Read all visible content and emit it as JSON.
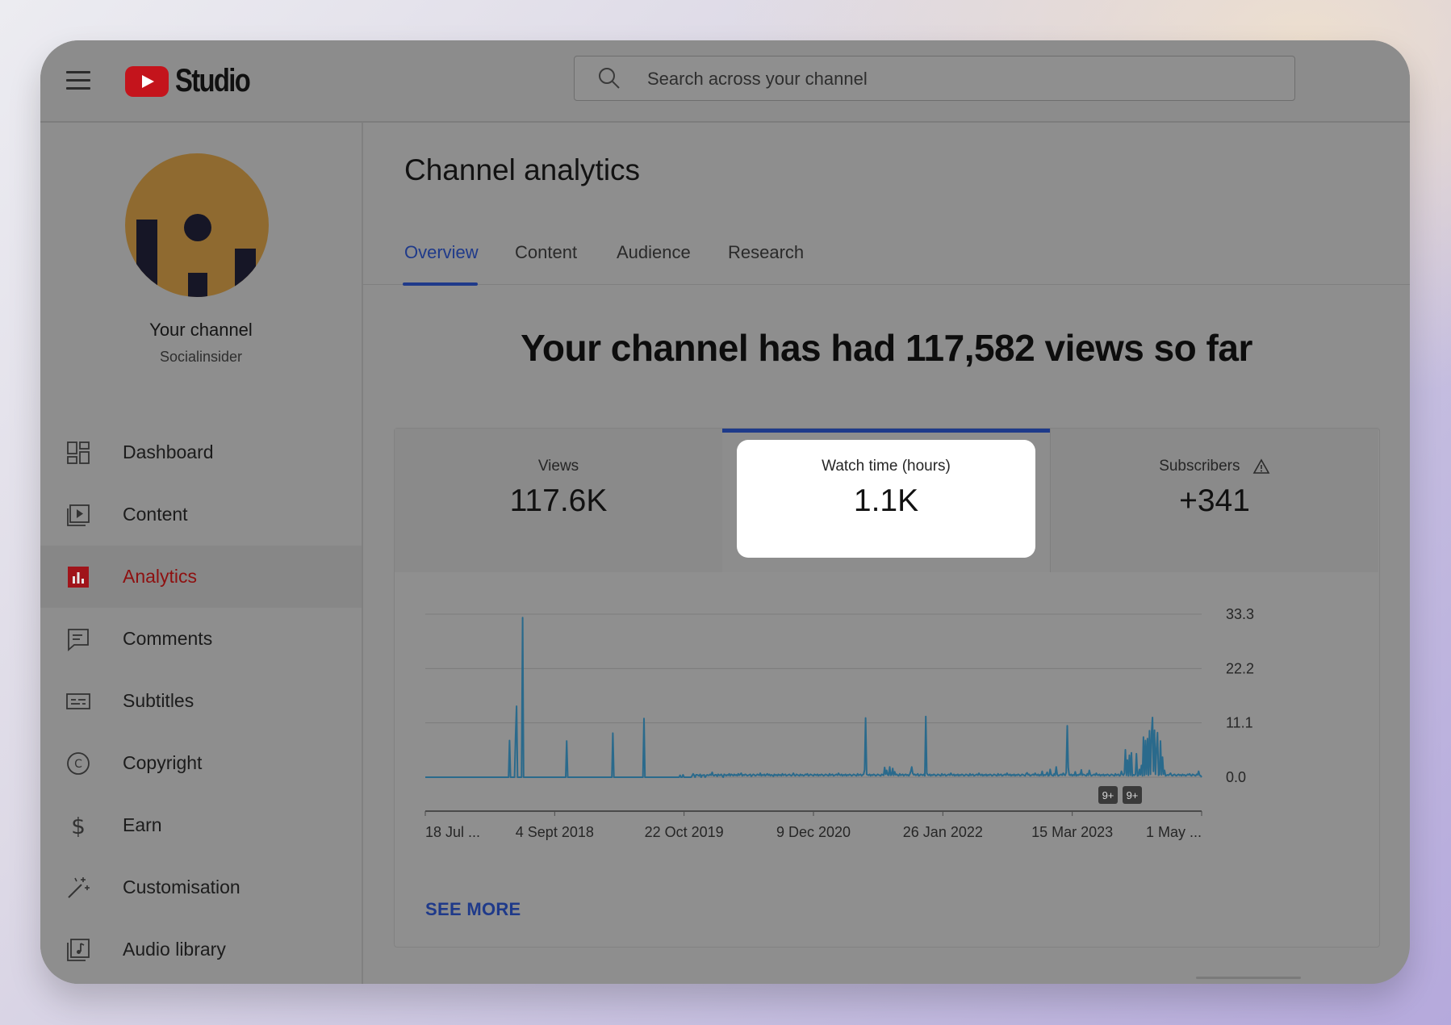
{
  "app": {
    "logo_text": "Studio",
    "search_placeholder": "Search across your channel"
  },
  "sidebar": {
    "channel_name": "Your channel",
    "channel_handle": "Socialinsider",
    "items": [
      {
        "label": "Dashboard",
        "icon": "dashboard-icon",
        "active": false
      },
      {
        "label": "Content",
        "icon": "content-icon",
        "active": false
      },
      {
        "label": "Analytics",
        "icon": "analytics-icon",
        "active": true
      },
      {
        "label": "Comments",
        "icon": "comments-icon",
        "active": false
      },
      {
        "label": "Subtitles",
        "icon": "subtitles-icon",
        "active": false
      },
      {
        "label": "Copyright",
        "icon": "copyright-icon",
        "active": false
      },
      {
        "label": "Earn",
        "icon": "earn-icon",
        "active": false
      },
      {
        "label": "Customisation",
        "icon": "customisation-icon",
        "active": false
      },
      {
        "label": "Audio library",
        "icon": "audio-library-icon",
        "active": false
      }
    ]
  },
  "main": {
    "title": "Channel analytics",
    "tabs": [
      {
        "label": "Overview",
        "active": true
      },
      {
        "label": "Content",
        "active": false
      },
      {
        "label": "Audience",
        "active": false
      },
      {
        "label": "Research",
        "active": false
      }
    ],
    "headline": "Your channel has had 117,582 views so far",
    "metrics": [
      {
        "label": "Views",
        "value": "117.6K"
      },
      {
        "label": "Watch time (hours)",
        "value": "1.1K",
        "selected": true
      },
      {
        "label": "Subscribers",
        "value": "+341",
        "icon": "warning-icon"
      }
    ],
    "see_more": "SEE MORE"
  },
  "colors": {
    "accent_blue": "#1f3a8a",
    "line_color": "#2a6a8c",
    "youtube_red": "#c4141c",
    "active_nav": "#8e1010"
  },
  "chart_data": {
    "type": "line",
    "ylabel": "",
    "xlabel": "",
    "y_ticks": [
      "33.3",
      "22.2",
      "11.1",
      "0.0"
    ],
    "ylim": [
      0,
      33.3
    ],
    "x_tick_labels": [
      "18 Jul ...",
      "4 Sept 2018",
      "22 Oct 2019",
      "9 Dec 2020",
      "26 Jan 2022",
      "15 Mar 2023",
      "1 May ..."
    ],
    "annotations": [
      "9+",
      "9+"
    ],
    "grid": true,
    "series": [
      {
        "values": [
          0,
          0,
          0,
          0,
          0,
          0,
          0,
          0,
          0,
          0,
          0,
          0,
          0,
          0,
          0,
          0,
          0,
          0,
          0,
          0,
          0,
          0,
          0,
          0,
          0,
          0,
          0,
          0,
          0,
          0,
          0,
          0,
          0,
          0,
          0,
          0,
          0,
          0,
          0,
          0,
          0,
          0,
          0,
          0,
          0,
          0,
          0,
          0,
          0,
          0,
          0,
          0,
          0,
          0,
          0,
          0,
          0,
          0,
          0,
          0,
          0,
          0,
          0,
          0,
          0,
          0,
          0,
          0,
          0,
          0,
          0,
          0,
          0,
          0,
          0,
          0,
          0,
          0,
          0,
          0,
          0,
          0,
          0,
          0,
          7.5,
          0,
          0,
          0,
          0,
          0,
          8.5,
          14.5,
          0,
          0,
          0,
          0,
          0,
          32.6,
          0,
          0,
          0,
          0,
          0,
          0,
          0,
          0,
          0,
          0,
          0,
          0,
          0,
          0,
          0,
          0,
          0,
          0,
          0,
          0,
          0,
          0,
          0,
          0,
          0,
          0,
          0,
          0,
          0,
          0,
          0,
          0,
          0,
          0,
          0,
          0,
          0,
          0,
          0,
          0,
          0,
          0,
          0,
          7.4,
          0,
          0,
          0,
          0,
          0,
          0,
          0,
          0,
          0,
          0,
          0,
          0,
          0,
          0,
          0,
          0,
          0,
          0,
          0,
          0,
          0,
          0,
          0,
          0,
          0,
          0,
          0,
          0,
          0,
          0,
          0,
          0,
          0,
          0,
          0,
          0,
          0,
          0,
          0,
          0,
          0,
          0,
          0,
          0,
          0,
          9,
          0,
          0,
          0,
          0,
          0,
          0,
          0,
          0,
          0,
          0,
          0,
          0,
          0,
          0,
          0,
          0,
          0,
          0,
          0,
          0,
          0,
          0,
          0,
          0,
          0,
          0,
          0,
          0,
          0,
          0,
          12,
          0,
          0,
          0,
          0,
          0,
          0,
          0,
          0,
          0,
          0,
          0,
          0,
          0,
          0,
          0,
          0,
          0,
          0,
          0,
          0,
          0,
          0,
          0,
          0,
          0,
          0,
          0,
          0,
          0,
          0,
          0,
          0,
          0,
          0,
          0,
          0.4,
          0,
          0,
          0.5,
          0,
          0,
          0,
          0,
          0,
          0,
          0,
          0,
          0.3,
          0.7,
          0.4,
          0,
          0.5,
          0.5,
          0.4,
          0.3,
          0.6,
          0,
          0.4,
          0.4,
          0.5,
          0,
          0.3,
          0.5,
          0.4,
          0.4,
          0.6,
          0.4,
          1,
          0.4,
          0.3,
          0.5,
          0.5,
          0.2,
          0.6,
          0.4,
          0.4,
          0.6,
          0.3,
          0,
          0.6,
          0.5,
          0.3,
          0.5,
          0.4,
          0.7,
          0.3,
          0.6,
          0.5,
          0.3,
          0.6,
          0.4,
          0.5,
          0.3,
          0.7,
          0.4,
          0.6,
          0.8,
          0.3,
          0.5,
          0.4,
          0.6,
          0.5,
          0.3,
          0.4,
          0.5,
          0.6,
          0.2,
          0.4,
          0.6,
          0.5,
          0.3,
          0.4,
          0.6,
          0.5,
          0.4,
          0.8,
          0.3,
          0.5,
          0.4,
          0.6,
          0.3,
          0.5,
          0.7,
          0.4,
          0.6,
          0.3,
          0.5,
          0.4,
          0.2,
          0.6,
          0.4,
          0.5,
          0.3,
          0.6,
          0.4,
          0.5,
          0.3,
          0.7,
          0.4,
          0.5,
          0.6,
          0.3,
          0.4,
          0.5,
          0.6,
          0.4,
          0.3,
          0.5,
          0.8,
          0.4,
          0.3,
          0.6,
          0.5,
          0.4,
          0.3,
          0.6,
          0.4,
          0.5,
          0.3,
          0.4,
          0.6,
          0.5,
          0.7,
          0.3,
          0.4,
          0.6,
          0.5,
          0.4,
          0.3,
          0.6,
          0.5,
          0.4,
          0.6,
          0.3,
          0.5,
          0.4,
          0.6,
          0.5,
          0.3,
          0.4,
          0.6,
          0.5,
          0.4,
          0.3,
          0.7,
          0.4,
          0.5,
          0.6,
          0.3,
          0.4,
          0.5,
          0.6,
          0.4,
          0.8,
          0.5,
          0.4,
          0.6,
          0.3,
          0.5,
          0.4,
          0.6,
          0.3,
          0.5,
          0.4,
          0.6,
          0.5,
          0.3,
          0.4,
          0.6,
          0.5,
          0.4,
          0.3,
          0.7,
          0.4,
          0.5,
          0.6,
          0.3,
          0.5,
          0.6,
          1.5,
          12.1,
          0.6,
          0.5,
          0.4,
          0.6,
          0.3,
          0.5,
          0.4,
          0.6,
          0.5,
          0.3,
          0.4,
          0.6,
          0.5,
          0.4,
          0.3,
          0.6,
          0.5,
          0.4,
          2,
          0.6,
          1.4,
          0.5,
          0.4,
          2.1,
          0.4,
          0.5,
          1.8,
          0.4,
          1.1,
          0.5,
          0.6,
          0.4,
          0.3,
          0.7,
          0.4,
          0.5,
          0.6,
          0.3,
          0.5,
          0.6,
          0.4,
          0.5,
          0.3,
          0.6,
          1.2,
          2.1,
          0.8,
          0.5,
          0.6,
          0.4,
          0.5,
          0.7,
          0.3,
          0.4,
          0.6,
          0.5,
          0.4,
          0.6,
          0.3,
          12.4,
          0.8,
          0.5,
          0.4,
          0.6,
          0.3,
          0.5,
          0.4,
          0.6,
          0.5,
          0.3,
          0.4,
          0.6,
          0.5,
          0.4,
          0.3,
          0.7,
          0.4,
          0.5,
          0.6,
          0.3,
          0.4,
          0.5,
          0.6,
          0.4,
          0.8,
          0.5,
          0.4,
          0.6,
          0.3,
          0.5,
          0.4,
          0.6,
          0.3,
          0.5,
          0.4,
          0.6,
          0.5,
          0.3,
          0.4,
          0.6,
          0.5,
          0.4,
          0.3,
          0.7,
          0.4,
          0.5,
          0.6,
          0.3,
          0.4,
          0.5,
          0.6,
          0.4,
          0.8,
          0.5,
          0.4,
          0.6,
          0.3,
          0.5,
          0.4,
          0.6,
          0.3,
          0.5,
          0.4,
          0.6,
          0.5,
          0.3,
          0.4,
          0.6,
          0.5,
          0.4,
          0.3,
          0.7,
          0.4,
          0.5,
          0.6,
          0.3,
          0.4,
          0.5,
          0.6,
          0.4,
          0.8,
          0.5,
          0.4,
          0.6,
          0.3,
          0.5,
          0.4,
          0.6,
          0.3,
          0.5,
          0.4,
          0.6,
          0.5,
          0.3,
          0.4,
          0.6,
          0.5,
          0.4,
          0.3,
          0.7,
          0.9,
          0.5,
          0.6,
          0.3,
          0.4,
          0.5,
          0.6,
          0.4,
          0.8,
          0.5,
          0.4,
          0.6,
          0.3,
          0.5,
          0.4,
          1.2,
          0.3,
          0.5,
          0.4,
          0.6,
          1,
          0.3,
          0.4,
          1.6,
          0.5,
          0.4,
          0.3,
          0.7,
          0.4,
          2.1,
          0.6,
          0.3,
          0.4,
          0.5,
          0.6,
          0.4,
          0.8,
          0.5,
          0.4,
          1,
          10.5,
          2,
          0.5,
          0.4,
          0.6,
          0.3,
          0.5,
          0.4,
          1.1,
          0.3,
          0.5,
          0.4,
          0.6,
          0.5,
          1.5,
          0.4,
          0.6,
          0.5,
          0.4,
          0.3,
          0.7,
          0.4,
          1.4,
          0.6,
          0.3,
          0.4,
          0.5,
          0.6,
          0.4,
          0.8,
          0.5,
          0.4,
          0.6,
          0.3,
          0.5,
          0.4,
          0.6,
          0.3,
          0.5,
          0.4,
          0.6,
          0.5,
          0.3,
          0.4,
          0.6,
          0.5,
          0.4,
          0.3,
          0.7,
          0.4,
          0.5,
          0.6,
          0.3,
          0.4,
          1.2,
          0.6,
          0.4,
          0.8,
          5.6,
          0.4,
          3.5,
          0.3,
          4.5,
          0.4,
          5,
          0.3,
          0.5,
          0.4,
          0.6,
          4.8,
          0.3,
          0.4,
          1.6,
          0.5,
          2.4,
          0.3,
          8.2,
          0.4,
          7.5,
          0.6,
          7.9,
          0.4,
          9.5,
          0.6,
          8.9,
          12.2,
          1.2,
          9.6,
          0.6,
          5.8,
          9.1,
          0.4,
          0.6,
          7.4,
          0.5,
          4.1,
          0.6,
          1.4,
          0.3,
          0.4,
          0.5,
          0.4,
          0.6,
          0.8,
          0.4,
          0.3,
          0.5,
          0.6,
          0.4,
          0.3,
          0.5,
          0.6,
          0.4,
          0.5,
          0.3,
          0.6,
          0.4,
          0.5,
          0.3,
          0.4,
          0.6,
          0.5,
          0.7,
          0.4,
          0.3,
          0.6,
          0.5,
          0.4,
          0.3,
          0.6,
          0.5,
          1.2,
          0.4,
          0.3,
          0
        ]
      }
    ]
  }
}
